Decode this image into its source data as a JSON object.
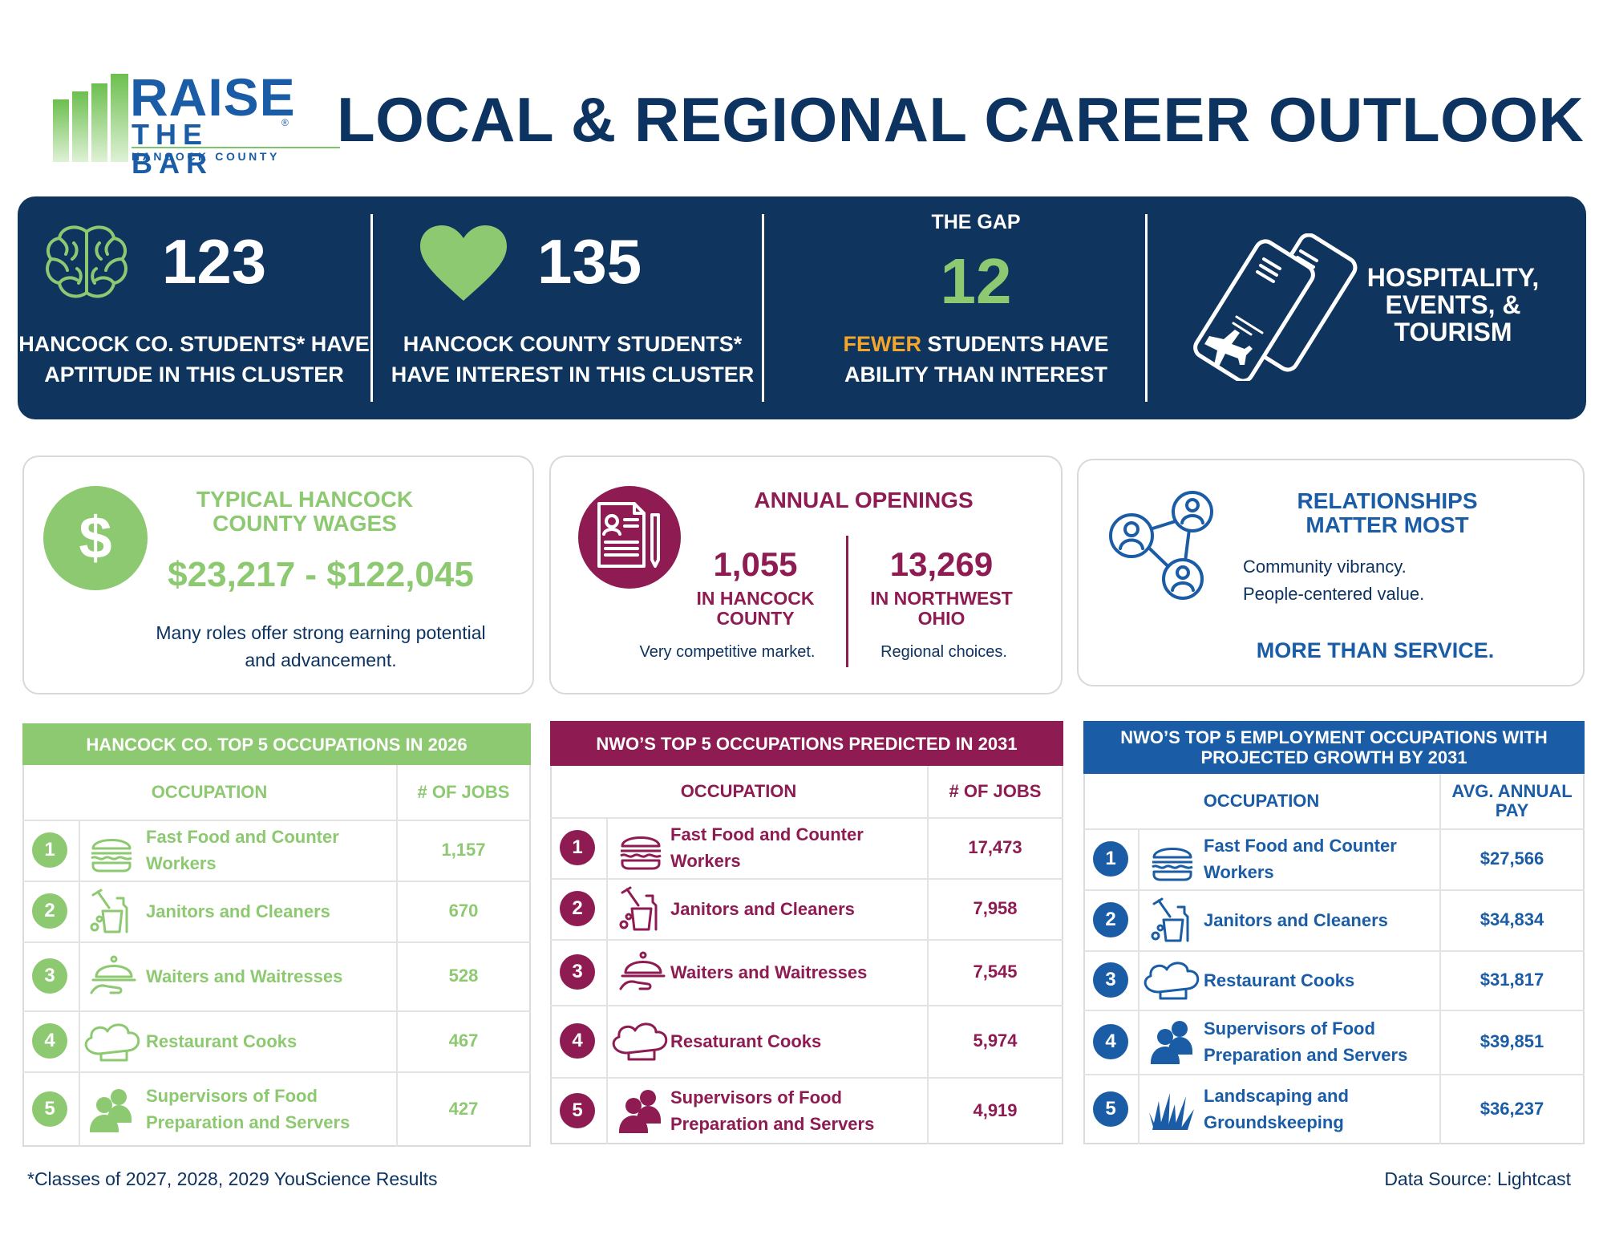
{
  "logo": {
    "line1": "RAISE",
    "line2": "THE BAR",
    "reg": "®",
    "line3": "HANCOCK COUNTY"
  },
  "title": "LOCAL & REGIONAL CAREER OUTLOOK",
  "banner": {
    "aptitude": {
      "number": "123",
      "caption": "HANCOCK CO. STUDENTS* HAVE APTITUDE IN THIS CLUSTER"
    },
    "interest": {
      "number": "135",
      "caption": "HANCOCK COUNTY STUDENTS* HAVE INTEREST IN THIS CLUSTER"
    },
    "gap": {
      "label": "THE GAP",
      "number": "12",
      "highlight": "FEWER",
      "caption_rest": " STUDENTS HAVE ABILITY THAN INTEREST"
    },
    "cluster": "HOSPITALITY, EVENTS, & TOURISM"
  },
  "wages": {
    "title": "TYPICAL HANCOCK COUNTY WAGES",
    "range": "$23,217 - $122,045",
    "text": "Many roles offer strong earning potential and advancement."
  },
  "openings": {
    "title": "ANNUAL OPENINGS",
    "local": {
      "number": "1,055",
      "where": "IN HANCOCK COUNTY",
      "note": "Very competitive market."
    },
    "regional": {
      "number": "13,269",
      "where": "IN NORTHWEST OHIO",
      "note": "Regional choices."
    }
  },
  "relationships": {
    "title": "RELATIONSHIPS MATTER MOST",
    "line1": "Community vibrancy.",
    "line2": "People-centered value.",
    "footer": "MORE THAN SERVICE."
  },
  "tables": [
    {
      "title": "HANCOCK CO. TOP 5 OCCUPATIONS IN 2026",
      "col_occupation": "OCCUPATION",
      "col_value": "# OF JOBS",
      "rows": [
        {
          "rank": "1",
          "icon": "burger-icon",
          "occupation": "Fast Food and Counter Workers",
          "value": "1,157"
        },
        {
          "rank": "2",
          "icon": "cleaning-supplies-icon",
          "occupation": "Janitors and Cleaners",
          "value": "670"
        },
        {
          "rank": "3",
          "icon": "serving-cloche-icon",
          "occupation": "Waiters and Waitresses",
          "value": "528"
        },
        {
          "rank": "4",
          "icon": "chef-hat-icon",
          "occupation": "Restaurant Cooks",
          "value": "467"
        },
        {
          "rank": "5",
          "icon": "people-group-icon",
          "occupation": "Supervisors of Food Preparation and Servers",
          "value": "427"
        }
      ]
    },
    {
      "title": "NWO’S TOP 5 OCCUPATIONS PREDICTED IN 2031",
      "col_occupation": "OCCUPATION",
      "col_value": "# OF JOBS",
      "rows": [
        {
          "rank": "1",
          "icon": "burger-icon",
          "occupation": "Fast Food and Counter Workers",
          "value": "17,473"
        },
        {
          "rank": "2",
          "icon": "cleaning-supplies-icon",
          "occupation": "Janitors and Cleaners",
          "value": "7,958"
        },
        {
          "rank": "3",
          "icon": "serving-cloche-icon",
          "occupation": "Waiters and Waitresses",
          "value": "7,545"
        },
        {
          "rank": "4",
          "icon": "chef-hat-icon",
          "occupation": "Resaturant Cooks",
          "value": "5,974"
        },
        {
          "rank": "5",
          "icon": "people-group-icon",
          "occupation": "Supervisors of Food Preparation and Servers",
          "value": "4,919"
        }
      ]
    },
    {
      "title": "NWO’S TOP 5 EMPLOYMENT OCCUPATIONS WITH PROJECTED GROWTH BY 2031",
      "col_occupation": "OCCUPATION",
      "col_value": "AVG. ANNUAL PAY",
      "rows": [
        {
          "rank": "1",
          "icon": "burger-icon",
          "occupation": "Fast Food and Counter Workers",
          "value": "$27,566"
        },
        {
          "rank": "2",
          "icon": "cleaning-supplies-icon",
          "occupation": "Janitors and Cleaners",
          "value": "$34,834"
        },
        {
          "rank": "3",
          "icon": "chef-hat-icon",
          "occupation": "Restaurant Cooks",
          "value": "$31,817"
        },
        {
          "rank": "4",
          "icon": "people-group-icon",
          "occupation": "Supervisors of Food Preparation and Servers",
          "value": "$39,851"
        },
        {
          "rank": "5",
          "icon": "grass-icon",
          "occupation": "Landscaping and Groundskeeping",
          "value": "$36,237"
        }
      ]
    }
  ],
  "footnote": "*Classes of 2027, 2028, 2029 YouScience Results",
  "source": "Data Source: Lightcast",
  "colors": {
    "navy": "#0f355e",
    "green": "#8dc970",
    "maroon": "#8e1b52",
    "blue": "#1a5da6",
    "orange": "#f4a62a"
  }
}
